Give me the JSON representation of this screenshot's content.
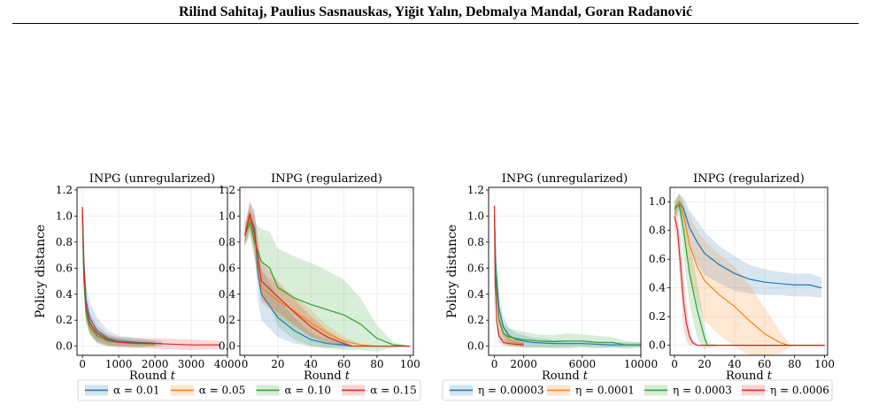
{
  "header": {
    "authors": "Rilind Sahitaj, Paulius Sasnauskas, Yiğit Yalın, Debmalya Mandal, Goran Radanović"
  },
  "colors": {
    "blue": "#1f77b4",
    "orange": "#ff7f0e",
    "green": "#2ca02c",
    "red": "#d62728"
  },
  "ylabel": "Policy distance",
  "xlabel_prefix": "Round ",
  "xlabel_var": "t",
  "legends": [
    {
      "items": [
        {
          "label": "α = 0.01",
          "color": "#1f77b4"
        },
        {
          "label": "α = 0.05",
          "color": "#ff7f0e"
        },
        {
          "label": "α = 0.10",
          "color": "#2ca02c"
        },
        {
          "label": "α = 0.15",
          "color": "#d62728"
        }
      ]
    },
    {
      "items": [
        {
          "label": "η = 0.00003",
          "color": "#1f77b4"
        },
        {
          "label": "η = 0.0001",
          "color": "#ff7f0e"
        },
        {
          "label": "η = 0.0003",
          "color": "#2ca02c"
        },
        {
          "label": "η = 0.0006",
          "color": "#d62728"
        }
      ]
    }
  ],
  "chart_data": [
    {
      "type": "line",
      "title": "INPG (unregularized)",
      "xticks": [
        "0",
        "1000",
        "2000",
        "3000",
        "4000"
      ],
      "xtick_values": [
        0,
        1000,
        2000,
        3000,
        4000
      ],
      "yticks": [
        "0.0",
        "0.2",
        "0.4",
        "0.6",
        "0.8",
        "1.0",
        "1.2"
      ],
      "ytick_values": [
        0,
        0.2,
        0.4,
        0.6,
        0.8,
        1.0,
        1.2
      ],
      "xlim": [
        -150,
        4000
      ],
      "ylim": [
        -0.07,
        1.22
      ],
      "show_ylabel": true,
      "grid": true,
      "series": [
        {
          "label_ref": "α = 0.01",
          "color": "#1f77b4",
          "x": [
            0,
            40,
            100,
            200,
            400,
            700,
            1000,
            1500,
            2200
          ],
          "y": [
            1.05,
            0.65,
            0.35,
            0.22,
            0.12,
            0.06,
            0.04,
            0.03,
            0.02
          ],
          "band": [
            0.02,
            0.1,
            0.12,
            0.12,
            0.1,
            0.06,
            0.04,
            0.03,
            0.02
          ]
        },
        {
          "label_ref": "α = 0.05",
          "color": "#ff7f0e",
          "x": [
            0,
            40,
            100,
            200,
            400,
            700,
            1000,
            1500,
            2000
          ],
          "y": [
            1.03,
            0.55,
            0.28,
            0.16,
            0.08,
            0.04,
            0.03,
            0.02,
            0.015
          ],
          "band": [
            0.02,
            0.08,
            0.08,
            0.06,
            0.05,
            0.04,
            0.03,
            0.02,
            0.015
          ]
        },
        {
          "label_ref": "α = 0.10",
          "color": "#2ca02c",
          "x": [
            0,
            40,
            100,
            200,
            400,
            700,
            1000,
            1500,
            2000
          ],
          "y": [
            1.0,
            0.5,
            0.25,
            0.15,
            0.08,
            0.04,
            0.03,
            0.02,
            0.02
          ],
          "band": [
            0.02,
            0.08,
            0.08,
            0.06,
            0.05,
            0.04,
            0.03,
            0.03,
            0.02
          ]
        },
        {
          "label_ref": "α = 0.15",
          "color": "#d62728",
          "x": [
            0,
            40,
            100,
            200,
            400,
            700,
            1000,
            2000,
            3000,
            3800
          ],
          "y": [
            1.07,
            0.6,
            0.3,
            0.18,
            0.1,
            0.05,
            0.03,
            0.02,
            0.01,
            0.01
          ],
          "band": [
            0.02,
            0.1,
            0.1,
            0.08,
            0.06,
            0.04,
            0.04,
            0.04,
            0.04,
            0.03
          ]
        }
      ]
    },
    {
      "type": "line",
      "title": "INPG (regularized)",
      "xticks": [
        "0",
        "20",
        "40",
        "60",
        "80",
        "100"
      ],
      "xtick_values": [
        0,
        20,
        40,
        60,
        80,
        100
      ],
      "yticks": [
        "0.0",
        "0.2",
        "0.4",
        "0.6",
        "0.8",
        "1.0",
        "1.2"
      ],
      "ytick_values": [
        0,
        0.2,
        0.4,
        0.6,
        0.8,
        1.0,
        1.2
      ],
      "xlim": [
        -3,
        102
      ],
      "ylim": [
        -0.07,
        1.22
      ],
      "show_ylabel": false,
      "grid": true,
      "series": [
        {
          "label_ref": "α = 0.01",
          "color": "#1f77b4",
          "x": [
            0,
            3,
            6,
            8,
            10,
            20,
            30,
            40,
            50,
            60,
            65
          ],
          "y": [
            0.85,
            1.0,
            0.9,
            0.55,
            0.4,
            0.22,
            0.12,
            0.05,
            0.02,
            0.01,
            0.0
          ],
          "band": [
            0.08,
            0.1,
            0.15,
            0.2,
            0.2,
            0.15,
            0.1,
            0.05,
            0.03,
            0.02,
            0.01
          ]
        },
        {
          "label_ref": "α = 0.05",
          "color": "#ff7f0e",
          "x": [
            0,
            3,
            6,
            10,
            20,
            30,
            40,
            50,
            60,
            70,
            80,
            100
          ],
          "y": [
            0.85,
            0.98,
            0.85,
            0.45,
            0.35,
            0.27,
            0.18,
            0.1,
            0.04,
            0.01,
            0.0,
            0.0
          ],
          "band": [
            0.08,
            0.1,
            0.15,
            0.12,
            0.12,
            0.12,
            0.1,
            0.06,
            0.03,
            0.01,
            0.0,
            0.0
          ]
        },
        {
          "label_ref": "α = 0.10",
          "color": "#2ca02c",
          "x": [
            0,
            3,
            6,
            10,
            15,
            20,
            30,
            40,
            50,
            60,
            70,
            80,
            90,
            100
          ],
          "y": [
            0.85,
            0.95,
            0.8,
            0.65,
            0.6,
            0.45,
            0.37,
            0.32,
            0.28,
            0.24,
            0.17,
            0.06,
            0.01,
            0.0
          ],
          "band": [
            0.08,
            0.1,
            0.15,
            0.25,
            0.28,
            0.3,
            0.32,
            0.32,
            0.3,
            0.27,
            0.2,
            0.1,
            0.02,
            0.0
          ]
        },
        {
          "label_ref": "α = 0.15",
          "color": "#d62728",
          "x": [
            0,
            3,
            6,
            10,
            20,
            30,
            40,
            50,
            60,
            65,
            100
          ],
          "y": [
            0.85,
            1.02,
            0.85,
            0.5,
            0.38,
            0.26,
            0.15,
            0.07,
            0.02,
            0.0,
            0.0
          ],
          "band": [
            0.08,
            0.1,
            0.15,
            0.15,
            0.12,
            0.1,
            0.08,
            0.05,
            0.02,
            0.0,
            0.0
          ]
        }
      ]
    },
    {
      "type": "line",
      "title": "INPG (unregularized)",
      "xticks": [
        "0",
        "2000",
        "6000",
        "10000"
      ],
      "xtick_values": [
        0,
        2000,
        6000,
        10000
      ],
      "yticks": [
        "0.0",
        "0.2",
        "0.4",
        "0.6",
        "0.8",
        "1.0",
        "1.2"
      ],
      "ytick_values": [
        0,
        0.2,
        0.4,
        0.6,
        0.8,
        1.0,
        1.2
      ],
      "xlim": [
        -400,
        10000
      ],
      "ylim": [
        -0.07,
        1.22
      ],
      "show_ylabel": true,
      "grid": true,
      "series": [
        {
          "label_ref": "η = 0.00003",
          "color": "#1f77b4",
          "x": [
            0,
            100,
            300,
            600,
            1000,
            1500,
            2500,
            4000,
            6000,
            8000,
            10000
          ],
          "y": [
            1.0,
            0.6,
            0.3,
            0.15,
            0.08,
            0.05,
            0.03,
            0.02,
            0.02,
            0.01,
            0.01
          ],
          "band": [
            0.03,
            0.1,
            0.1,
            0.08,
            0.06,
            0.05,
            0.04,
            0.03,
            0.02,
            0.02,
            0.02
          ]
        },
        {
          "label_ref": "η = 0.0001",
          "color": "#ff7f0e",
          "x": [
            0,
            100,
            300,
            600,
            1000,
            1500,
            2000
          ],
          "y": [
            1.0,
            0.5,
            0.22,
            0.1,
            0.05,
            0.03,
            0.02
          ],
          "band": [
            0.03,
            0.08,
            0.08,
            0.06,
            0.04,
            0.03,
            0.02
          ]
        },
        {
          "label_ref": "η = 0.0003",
          "color": "#2ca02c",
          "x": [
            0,
            100,
            300,
            600,
            1000,
            2000,
            3000,
            4000,
            5000,
            6000,
            7000,
            8000,
            9000,
            10000
          ],
          "y": [
            1.0,
            0.5,
            0.2,
            0.1,
            0.07,
            0.05,
            0.04,
            0.035,
            0.04,
            0.04,
            0.03,
            0.03,
            0.01,
            0.01
          ],
          "band": [
            0.03,
            0.1,
            0.1,
            0.08,
            0.07,
            0.06,
            0.05,
            0.05,
            0.06,
            0.05,
            0.05,
            0.04,
            0.03,
            0.02
          ]
        },
        {
          "label_ref": "η = 0.0006",
          "color": "#d62728",
          "x": [
            0,
            50,
            150,
            300,
            600,
            1000,
            2000
          ],
          "y": [
            1.08,
            0.5,
            0.2,
            0.08,
            0.03,
            0.02,
            0.01
          ],
          "band": [
            0.03,
            0.08,
            0.06,
            0.05,
            0.03,
            0.02,
            0.01
          ]
        }
      ]
    },
    {
      "type": "line",
      "title": "INPG (regularized)",
      "xticks": [
        "0",
        "20",
        "40",
        "60",
        "80",
        "100"
      ],
      "xtick_values": [
        0,
        20,
        40,
        60,
        80,
        100
      ],
      "yticks": [
        "0.0",
        "0.2",
        "0.4",
        "0.6",
        "0.8",
        "1.0"
      ],
      "ytick_values": [
        0,
        0.2,
        0.4,
        0.6,
        0.8,
        1.0
      ],
      "xlim": [
        -3,
        102
      ],
      "ylim": [
        -0.07,
        1.1
      ],
      "show_ylabel": false,
      "grid": true,
      "series": [
        {
          "label_ref": "η = 0.00003",
          "color": "#1f77b4",
          "x": [
            0,
            3,
            6,
            10,
            15,
            20,
            30,
            40,
            50,
            60,
            70,
            80,
            90,
            98
          ],
          "y": [
            0.95,
            1.0,
            0.95,
            0.82,
            0.72,
            0.64,
            0.56,
            0.5,
            0.46,
            0.44,
            0.43,
            0.42,
            0.42,
            0.4
          ],
          "band": [
            0.05,
            0.05,
            0.08,
            0.12,
            0.15,
            0.15,
            0.13,
            0.12,
            0.1,
            0.09,
            0.08,
            0.08,
            0.08,
            0.07
          ]
        },
        {
          "label_ref": "η = 0.0001",
          "color": "#ff7f0e",
          "x": [
            0,
            3,
            6,
            10,
            15,
            20,
            30,
            40,
            50,
            60,
            70,
            76,
            80,
            100
          ],
          "y": [
            0.95,
            1.0,
            0.9,
            0.7,
            0.55,
            0.45,
            0.35,
            0.27,
            0.17,
            0.08,
            0.02,
            0.0,
            0.0,
            0.0
          ],
          "band": [
            0.05,
            0.06,
            0.1,
            0.2,
            0.25,
            0.28,
            0.28,
            0.28,
            0.25,
            0.18,
            0.08,
            0.02,
            0.0,
            0.0
          ]
        },
        {
          "label_ref": "η = 0.0003",
          "color": "#2ca02c",
          "x": [
            0,
            3,
            6,
            10,
            15,
            20,
            22,
            30,
            100
          ],
          "y": [
            0.95,
            0.98,
            0.8,
            0.5,
            0.25,
            0.05,
            0.0,
            0.0,
            0.0
          ],
          "band": [
            0.05,
            0.08,
            0.18,
            0.22,
            0.2,
            0.08,
            0.02,
            0.0,
            0.0
          ]
        },
        {
          "label_ref": "η = 0.0006",
          "color": "#d62728",
          "x": [
            0,
            2,
            4,
            6,
            8,
            10,
            12,
            15,
            100
          ],
          "y": [
            0.9,
            0.8,
            0.55,
            0.3,
            0.15,
            0.06,
            0.02,
            0.0,
            0.0
          ],
          "band": [
            0.08,
            0.12,
            0.18,
            0.18,
            0.12,
            0.06,
            0.02,
            0.0,
            0.0
          ]
        }
      ]
    }
  ]
}
